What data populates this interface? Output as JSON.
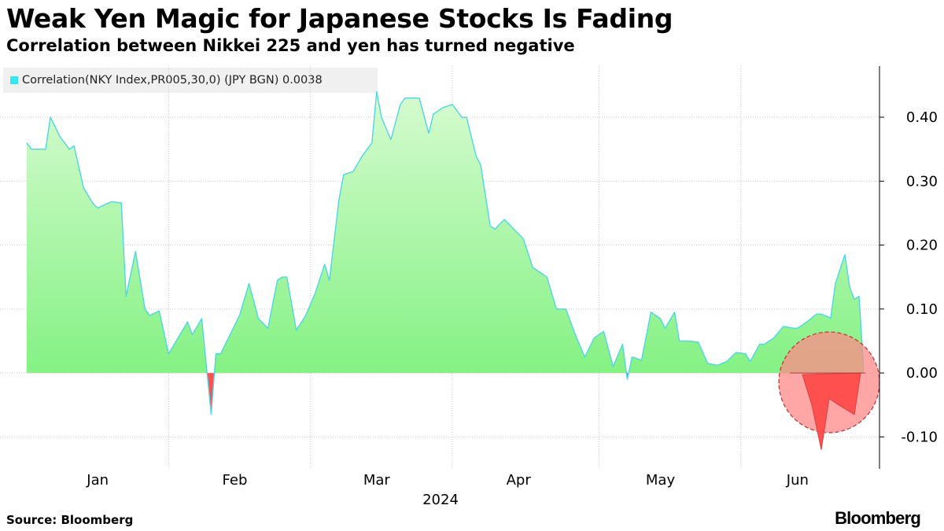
{
  "header": {
    "title": "Weak Yen Magic for Japanese Stocks Is Fading",
    "subtitle": "Correlation between Nikkei 225 and yen has turned negative"
  },
  "footer": {
    "source": "Source: Bloomberg",
    "brand": "Bloomberg"
  },
  "colors": {
    "positive_fill_top": "#d6fbd0",
    "positive_fill_bottom": "#78f078",
    "line": "#4fd6e6",
    "negative_fill": "#ff5050",
    "highlight_circle": "#ff8a8a",
    "legend_swatch": "#33e8f0"
  },
  "chart_data": {
    "type": "area",
    "legend": [
      {
        "label": "Correlation(NKY Index,PR005,30,0) (JPY BGN) 0.0038"
      }
    ],
    "x_tick_labels": [
      "Jan",
      "Feb",
      "Mar",
      "Apr",
      "May",
      "Jun"
    ],
    "x_year_label": "2024",
    "x_range": [
      "2024-01-01",
      "2024-06-26"
    ],
    "ylim": [
      -0.15,
      0.48
    ],
    "y_ticks": [
      -0.1,
      0.0,
      0.1,
      0.2,
      0.3,
      0.4
    ],
    "y_tick_labels": [
      "-0.10",
      "0.00",
      "0.10",
      "0.20",
      "0.30",
      "0.40"
    ],
    "grid": true,
    "legend_position": "top-left",
    "annotation": "negative region in June circled in red",
    "series": [
      {
        "name": "Correlation(NKY Index,PR005,30,0) (JPY BGN)",
        "points": [
          [
            "2024-01-01",
            0.36
          ],
          [
            "2024-01-02",
            0.35
          ],
          [
            "2024-01-04",
            0.35
          ],
          [
            "2024-01-05",
            0.35
          ],
          [
            "2024-01-06",
            0.4
          ],
          [
            "2024-01-08",
            0.37
          ],
          [
            "2024-01-10",
            0.35
          ],
          [
            "2024-01-11",
            0.355
          ],
          [
            "2024-01-13",
            0.29
          ],
          [
            "2024-01-15",
            0.265
          ],
          [
            "2024-01-16",
            0.258
          ],
          [
            "2024-01-18",
            0.265
          ],
          [
            "2024-01-19",
            0.268
          ],
          [
            "2024-01-21",
            0.266
          ],
          [
            "2024-01-22",
            0.12
          ],
          [
            "2024-01-24",
            0.19
          ],
          [
            "2024-01-26",
            0.1
          ],
          [
            "2024-01-27",
            0.09
          ],
          [
            "2024-01-29",
            0.097
          ],
          [
            "2024-01-31",
            0.03
          ],
          [
            "2024-02-02",
            0.055
          ],
          [
            "2024-02-04",
            0.08
          ],
          [
            "2024-02-05",
            0.06
          ],
          [
            "2024-02-07",
            0.085
          ],
          [
            "2024-02-09",
            -0.065
          ],
          [
            "2024-02-10",
            0.03
          ],
          [
            "2024-02-11",
            0.03
          ],
          [
            "2024-02-13",
            0.06
          ],
          [
            "2024-02-15",
            0.09
          ],
          [
            "2024-02-17",
            0.14
          ],
          [
            "2024-02-19",
            0.085
          ],
          [
            "2024-02-21",
            0.07
          ],
          [
            "2024-02-23",
            0.145
          ],
          [
            "2024-02-24",
            0.15
          ],
          [
            "2024-02-25",
            0.15
          ],
          [
            "2024-02-27",
            0.067
          ],
          [
            "2024-02-29",
            0.09
          ],
          [
            "2024-03-02",
            0.125
          ],
          [
            "2024-03-04",
            0.17
          ],
          [
            "2024-03-05",
            0.145
          ],
          [
            "2024-03-07",
            0.27
          ],
          [
            "2024-03-08",
            0.31
          ],
          [
            "2024-03-10",
            0.315
          ],
          [
            "2024-03-12",
            0.34
          ],
          [
            "2024-03-14",
            0.36
          ],
          [
            "2024-03-15",
            0.44
          ],
          [
            "2024-03-16",
            0.4
          ],
          [
            "2024-03-18",
            0.365
          ],
          [
            "2024-03-20",
            0.42
          ],
          [
            "2024-03-21",
            0.43
          ],
          [
            "2024-03-23",
            0.43
          ],
          [
            "2024-03-24",
            0.43
          ],
          [
            "2024-03-26",
            0.375
          ],
          [
            "2024-03-27",
            0.405
          ],
          [
            "2024-03-29",
            0.415
          ],
          [
            "2024-03-31",
            0.42
          ],
          [
            "2024-04-02",
            0.4
          ],
          [
            "2024-04-03",
            0.4
          ],
          [
            "2024-04-05",
            0.34
          ],
          [
            "2024-04-06",
            0.325
          ],
          [
            "2024-04-08",
            0.23
          ],
          [
            "2024-04-09",
            0.225
          ],
          [
            "2024-04-11",
            0.24
          ],
          [
            "2024-04-13",
            0.225
          ],
          [
            "2024-04-15",
            0.21
          ],
          [
            "2024-04-17",
            0.165
          ],
          [
            "2024-04-19",
            0.155
          ],
          [
            "2024-04-20",
            0.15
          ],
          [
            "2024-04-22",
            0.1
          ],
          [
            "2024-04-24",
            0.1
          ],
          [
            "2024-04-26",
            0.06
          ],
          [
            "2024-04-28",
            0.025
          ],
          [
            "2024-04-30",
            0.055
          ],
          [
            "2024-05-02",
            0.065
          ],
          [
            "2024-05-04",
            0.01
          ],
          [
            "2024-05-06",
            0.045
          ],
          [
            "2024-05-07",
            -0.01
          ],
          [
            "2024-05-08",
            0.025
          ],
          [
            "2024-05-10",
            0.02
          ],
          [
            "2024-05-12",
            0.095
          ],
          [
            "2024-05-14",
            0.085
          ],
          [
            "2024-05-15",
            0.07
          ],
          [
            "2024-05-17",
            0.095
          ],
          [
            "2024-05-18",
            0.05
          ],
          [
            "2024-05-20",
            0.05
          ],
          [
            "2024-05-22",
            0.048
          ],
          [
            "2024-05-24",
            0.015
          ],
          [
            "2024-05-26",
            0.012
          ],
          [
            "2024-05-28",
            0.018
          ],
          [
            "2024-05-30",
            0.032
          ],
          [
            "2024-06-01",
            0.03
          ],
          [
            "2024-06-02",
            0.018
          ],
          [
            "2024-06-04",
            0.045
          ],
          [
            "2024-06-05",
            0.045
          ],
          [
            "2024-06-07",
            0.055
          ],
          [
            "2024-06-09",
            0.073
          ],
          [
            "2024-06-11",
            0.07
          ],
          [
            "2024-06-12",
            0.07
          ],
          [
            "2024-06-14",
            0.08
          ],
          [
            "2024-06-16",
            0.092
          ],
          [
            "2024-06-17",
            0.092
          ],
          [
            "2024-06-19",
            0.086
          ],
          [
            "2024-06-20",
            0.14
          ],
          [
            "2024-06-22",
            0.185
          ],
          [
            "2024-06-23",
            0.135
          ],
          [
            "2024-06-24",
            0.115
          ],
          [
            "2024-06-25",
            0.12
          ],
          [
            "2024-06-26",
            0.0038
          ]
        ]
      }
    ]
  }
}
